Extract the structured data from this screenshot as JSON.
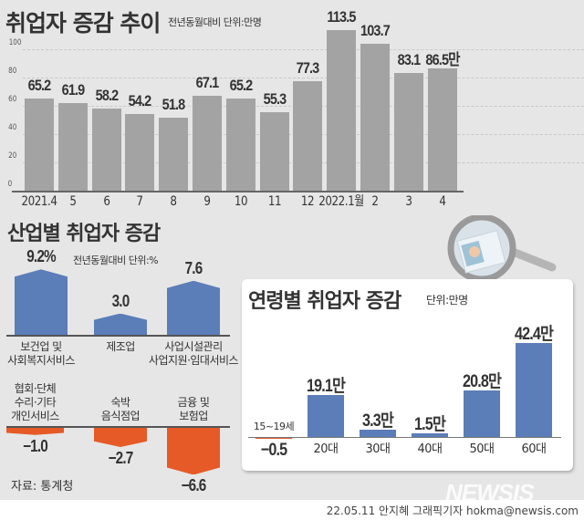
{
  "colors": {
    "background": "#e6e6e6",
    "trend_bar": "#a3a3a3",
    "positive": "#5b7db8",
    "negative": "#e55a27"
  },
  "chart_data": [
    {
      "type": "bar",
      "title": "취업자 증감 추이",
      "subtitle": "전년동월대비 단위:만명",
      "categories": [
        "2021.4",
        "5",
        "6",
        "7",
        "8",
        "9",
        "10",
        "11",
        "12",
        "2022.1월",
        "2",
        "3",
        "4"
      ],
      "values": [
        65.2,
        61.9,
        58.2,
        54.2,
        51.8,
        67.1,
        65.2,
        55.3,
        77.3,
        113.5,
        103.7,
        83.1,
        86.5
      ],
      "value_labels": [
        "65.2",
        "61.9",
        "58.2",
        "54.2",
        "51.8",
        "67.1",
        "65.2",
        "55.3",
        "77.3",
        "113.5",
        "103.7",
        "83.1",
        "86.5만"
      ],
      "yticks": [
        "0",
        "20",
        "40",
        "60",
        "80",
        "100"
      ],
      "ylim": [
        0,
        120
      ],
      "grid": true
    },
    {
      "type": "bar",
      "title": "산업별 취업자 증감",
      "subtitle": "전년동월대비 단위:%",
      "categories": [
        [
          "보건업 및",
          "사회복지서비스"
        ],
        [
          "제조업"
        ],
        [
          "사업시설관리",
          "사업지원·임대서비스"
        ],
        [
          "협회·단체",
          "수리·기타",
          "개인서비스"
        ],
        [
          "숙박",
          "음식점업"
        ],
        [
          "금융 및",
          "보험업"
        ]
      ],
      "values": [
        9.2,
        3.0,
        7.6,
        -1.0,
        -2.7,
        -6.6
      ],
      "value_labels": [
        "9.2%",
        "3.0",
        "7.6",
        "−1.0",
        "−2.7",
        "−6.6"
      ]
    },
    {
      "type": "bar",
      "title": "연령별 취업자 증감",
      "subtitle": "단위:만명",
      "categories": [
        "15~19세",
        "20대",
        "30대",
        "40대",
        "50대",
        "60대"
      ],
      "values": [
        -0.5,
        19.1,
        3.3,
        1.5,
        20.8,
        42.4
      ],
      "value_labels": [
        "−0.5",
        "19.1만",
        "3.3만",
        "1.5만",
        "20.8만",
        "42.4만"
      ]
    }
  ],
  "source": "자료: 통계청",
  "watermark": "NEWSIS",
  "credit": "22.05.11 안지혜 그래픽기자 hokma@newsis.com"
}
